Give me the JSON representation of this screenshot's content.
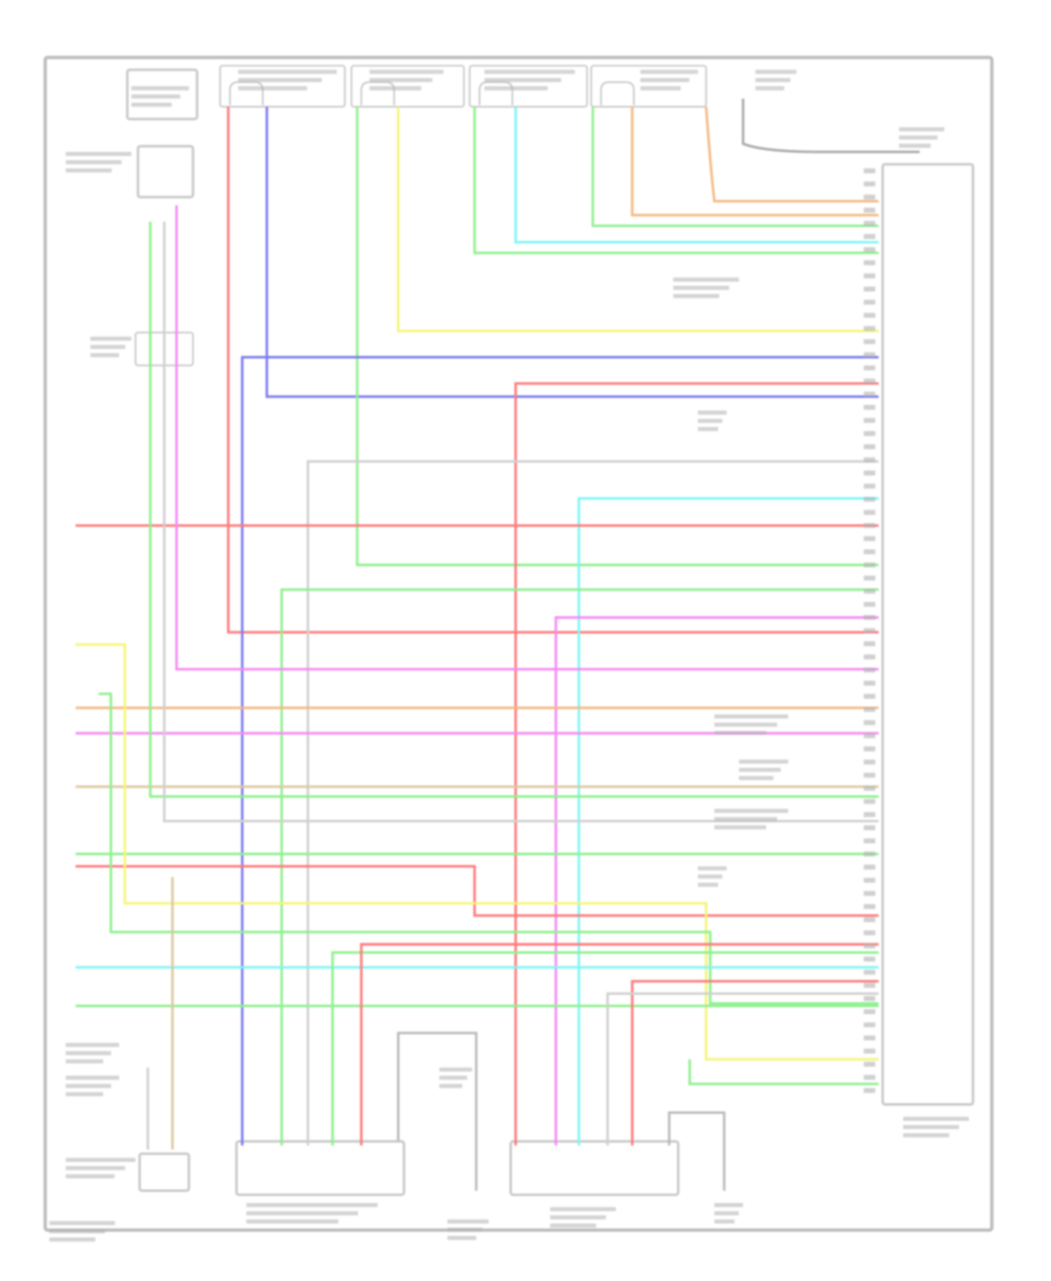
{
  "diagram": {
    "frame_color": "#bdbdbd",
    "component_color": "#c8c8c8",
    "label_color": "#b0b0b0",
    "wire_colors": {
      "red": "#ff7a7a",
      "blue": "#7b7bf0",
      "green": "#8ff08f",
      "yellow": "#f5f57a",
      "cyan": "#80f5f5",
      "orange": "#f5b880",
      "magenta": "#f58af5",
      "tan": "#dcc9a0",
      "gray": "#d0d0d0"
    }
  }
}
